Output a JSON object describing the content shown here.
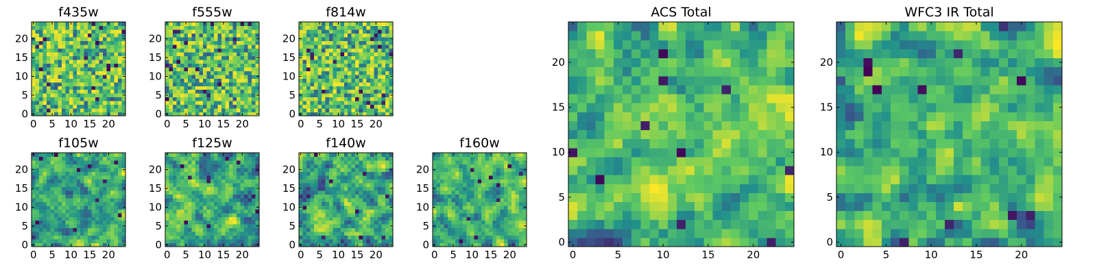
{
  "figure_title": "",
  "colormap": "viridis",
  "colormap_stops": [
    "#440154",
    "#3b528b",
    "#21918c",
    "#5ec962",
    "#fde725"
  ],
  "chart_data": [
    {
      "type": "heatmap",
      "name": "f435w",
      "title": "f435w",
      "grid_size": 25,
      "xticks": [
        "0",
        "5",
        "10",
        "15",
        "20"
      ],
      "yticks": [
        "0",
        "5",
        "10",
        "15",
        "20"
      ],
      "seed": 11,
      "smoothness": 0,
      "value_range": [
        0,
        1
      ]
    },
    {
      "type": "heatmap",
      "name": "f555w",
      "title": "f555w",
      "grid_size": 25,
      "xticks": [
        "0",
        "5",
        "10",
        "15",
        "20"
      ],
      "yticks": [
        "0",
        "5",
        "10",
        "15",
        "20"
      ],
      "seed": 23,
      "smoothness": 0,
      "value_range": [
        0,
        1
      ]
    },
    {
      "type": "heatmap",
      "name": "f814w",
      "title": "f814w",
      "grid_size": 25,
      "xticks": [
        "0",
        "5",
        "10",
        "15",
        "20"
      ],
      "yticks": [
        "0",
        "5",
        "10",
        "15",
        "20"
      ],
      "seed": 37,
      "smoothness": 0,
      "value_range": [
        0,
        1
      ]
    },
    {
      "type": "heatmap",
      "name": "f105w",
      "title": "f105w",
      "grid_size": 25,
      "xticks": [
        "0",
        "5",
        "10",
        "15",
        "20"
      ],
      "yticks": [
        "0",
        "5",
        "10",
        "15",
        "20"
      ],
      "seed": 41,
      "smoothness": 1,
      "value_range": [
        0,
        1
      ]
    },
    {
      "type": "heatmap",
      "name": "f125w",
      "title": "f125w",
      "grid_size": 25,
      "xticks": [
        "0",
        "5",
        "10",
        "15",
        "20"
      ],
      "yticks": [
        "0",
        "5",
        "10",
        "15",
        "20"
      ],
      "seed": 53,
      "smoothness": 1,
      "value_range": [
        0,
        1
      ]
    },
    {
      "type": "heatmap",
      "name": "f140w",
      "title": "f140w",
      "grid_size": 25,
      "xticks": [
        "0",
        "5",
        "10",
        "15",
        "20"
      ],
      "yticks": [
        "0",
        "5",
        "10",
        "15",
        "20"
      ],
      "seed": 67,
      "smoothness": 1,
      "value_range": [
        0,
        1
      ]
    },
    {
      "type": "heatmap",
      "name": "f160w",
      "title": "f160w",
      "grid_size": 25,
      "xticks": [
        "0",
        "5",
        "10",
        "15",
        "20"
      ],
      "yticks": [
        "0",
        "5",
        "10",
        "15",
        "20"
      ],
      "seed": 79,
      "smoothness": 1,
      "value_range": [
        0,
        1
      ]
    },
    {
      "type": "heatmap",
      "name": "acs-total",
      "title": "ACS Total",
      "grid_size": 25,
      "xticks": [
        "0",
        "5",
        "10",
        "15",
        "20"
      ],
      "yticks": [
        "0",
        "5",
        "10",
        "15",
        "20"
      ],
      "seed": 97,
      "smoothness": 1,
      "value_range": [
        0,
        1
      ]
    },
    {
      "type": "heatmap",
      "name": "wfc3-ir-total",
      "title": "WFC3 IR Total",
      "grid_size": 25,
      "xticks": [
        "0",
        "5",
        "10",
        "15",
        "20"
      ],
      "yticks": [
        "0",
        "5",
        "10",
        "15",
        "20"
      ],
      "seed": 113,
      "smoothness": 1,
      "value_range": [
        0,
        1
      ]
    }
  ]
}
